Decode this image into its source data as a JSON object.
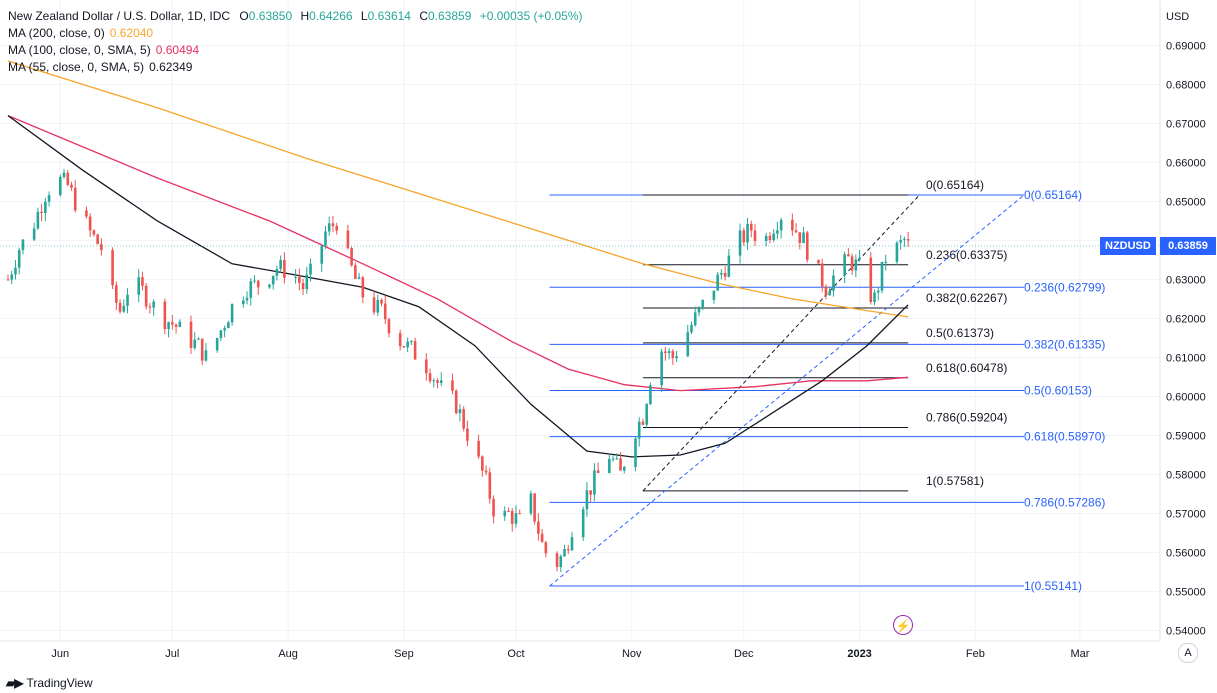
{
  "legend": {
    "title": "New Zealand Dollar / U.S. Dollar, 1D, IDC",
    "open_label": "O",
    "open": "0.63850",
    "high_label": "H",
    "high": "0.64266",
    "low_label": "L",
    "low": "0.63614",
    "close_label": "C",
    "close": "0.63859",
    "change": "+0.00035 (+0.05%)",
    "ma200_label": "MA (200, close, 0)",
    "ma200": "0.62040",
    "ma100_label": "MA (100, close, 0, SMA, 5)",
    "ma100": "0.60494",
    "ma55_label": "MA (55, close, 0, SMA, 5)",
    "ma55": "0.62349"
  },
  "price_tag": {
    "symbol": "NZDUSD",
    "price": "0.63859"
  },
  "brand": "TradingView",
  "auto_button": "A",
  "colors": {
    "up": "#26a69a",
    "down": "#ef5350",
    "ma200": "#f7a52b",
    "ma100": "#e8305f",
    "ma55": "#131722",
    "fib_blue": "#2962ff",
    "fib_black": "#131722",
    "grid": "#f0f3fa"
  },
  "chart_data": {
    "type": "candlestick",
    "title": "New Zealand Dollar / U.S. Dollar, 1D, IDC",
    "currency_label": "USD",
    "ylim": [
      0.538,
      0.6965
    ],
    "yticks": [
      "0.69000",
      "0.68000",
      "0.67000",
      "0.66000",
      "0.65000",
      "0.64000",
      "0.63000",
      "0.62000",
      "0.61000",
      "0.60000",
      "0.59000",
      "0.58000",
      "0.57000",
      "0.56000",
      "0.55000",
      "0.54000"
    ],
    "ytick_values": [
      0.69,
      0.68,
      0.67,
      0.66,
      0.65,
      0.64,
      0.63,
      0.62,
      0.61,
      0.6,
      0.59,
      0.58,
      0.57,
      0.56,
      0.55,
      0.54
    ],
    "xticks": [
      {
        "label": "Jun",
        "day": 14
      },
      {
        "label": "Jul",
        "day": 44
      },
      {
        "label": "Aug",
        "day": 75
      },
      {
        "label": "Sep",
        "day": 106
      },
      {
        "label": "Oct",
        "day": 136
      },
      {
        "label": "Nov",
        "day": 167
      },
      {
        "label": "Dec",
        "day": 197
      },
      {
        "label": "2023",
        "day": 228
      },
      {
        "label": "Feb",
        "day": 259
      },
      {
        "label": "Mar",
        "day": 287
      }
    ],
    "day_range": [
      0,
      320
    ],
    "ohlc_anchors": [
      [
        0,
        0.63
      ],
      [
        3,
        0.638
      ],
      [
        6,
        0.642
      ],
      [
        10,
        0.652
      ],
      [
        13,
        0.656
      ],
      [
        16,
        0.654
      ],
      [
        19,
        0.648
      ],
      [
        22,
        0.642
      ],
      [
        25,
        0.638
      ],
      [
        27,
        0.628
      ],
      [
        30,
        0.622
      ],
      [
        33,
        0.63
      ],
      [
        36,
        0.627
      ],
      [
        39,
        0.623
      ],
      [
        42,
        0.62
      ],
      [
        45,
        0.618
      ],
      [
        48,
        0.615
      ],
      [
        51,
        0.613
      ],
      [
        53,
        0.61
      ],
      [
        56,
        0.615
      ],
      [
        60,
        0.623
      ],
      [
        64,
        0.628
      ],
      [
        68,
        0.629
      ],
      [
        72,
        0.633
      ],
      [
        76,
        0.632
      ],
      [
        79,
        0.628
      ],
      [
        82,
        0.633
      ],
      [
        85,
        0.642
      ],
      [
        88,
        0.645
      ],
      [
        90,
        0.638
      ],
      [
        93,
        0.63
      ],
      [
        96,
        0.624
      ],
      [
        100,
        0.622
      ],
      [
        104,
        0.615
      ],
      [
        108,
        0.612
      ],
      [
        112,
        0.608
      ],
      [
        116,
        0.602
      ],
      [
        120,
        0.598
      ],
      [
        124,
        0.588
      ],
      [
        128,
        0.578
      ],
      [
        131,
        0.568
      ],
      [
        134,
        0.57
      ],
      [
        137,
        0.568
      ],
      [
        140,
        0.573
      ],
      [
        143,
        0.562
      ],
      [
        146,
        0.556
      ],
      [
        149,
        0.56
      ],
      [
        152,
        0.57
      ],
      [
        155,
        0.575
      ],
      [
        158,
        0.58
      ],
      [
        161,
        0.585
      ],
      [
        164,
        0.58
      ],
      [
        167,
        0.59
      ],
      [
        170,
        0.595
      ],
      [
        172,
        0.605
      ],
      [
        175,
        0.612
      ],
      [
        178,
        0.61
      ],
      [
        181,
        0.615
      ],
      [
        184,
        0.62
      ],
      [
        187,
        0.625
      ],
      [
        190,
        0.63
      ],
      [
        193,
        0.635
      ],
      [
        196,
        0.64
      ],
      [
        199,
        0.643
      ],
      [
        202,
        0.639
      ],
      [
        205,
        0.644
      ],
      [
        208,
        0.648
      ],
      [
        210,
        0.644
      ],
      [
        213,
        0.64
      ],
      [
        216,
        0.633
      ],
      [
        219,
        0.628
      ],
      [
        222,
        0.632
      ],
      [
        225,
        0.635
      ],
      [
        228,
        0.633
      ],
      [
        230,
        0.627
      ],
      [
        232,
        0.625
      ],
      [
        234,
        0.632
      ],
      [
        236,
        0.639
      ],
      [
        238,
        0.638
      ],
      [
        240,
        0.64
      ],
      [
        241,
        0.6386
      ]
    ],
    "series": [
      {
        "name": "MA (200, close, 0)",
        "value": 0.6204,
        "points": [
          [
            0,
            0.686
          ],
          [
            40,
            0.674
          ],
          [
            80,
            0.661
          ],
          [
            120,
            0.649
          ],
          [
            150,
            0.64
          ],
          [
            170,
            0.634
          ],
          [
            190,
            0.629
          ],
          [
            210,
            0.625
          ],
          [
            230,
            0.622
          ],
          [
            241,
            0.6204
          ]
        ]
      },
      {
        "name": "MA (100, close, 0, SMA, 5)",
        "value": 0.60494,
        "points": [
          [
            0,
            0.672
          ],
          [
            15,
            0.666
          ],
          [
            40,
            0.656
          ],
          [
            70,
            0.645
          ],
          [
            95,
            0.634
          ],
          [
            115,
            0.625
          ],
          [
            135,
            0.614
          ],
          [
            150,
            0.607
          ],
          [
            165,
            0.603
          ],
          [
            180,
            0.6015
          ],
          [
            200,
            0.6025
          ],
          [
            215,
            0.604
          ],
          [
            230,
            0.604
          ],
          [
            241,
            0.6049
          ]
        ]
      },
      {
        "name": "MA (55, close, 0, SMA, 5)",
        "value": 0.62349,
        "points": [
          [
            0,
            0.672
          ],
          [
            20,
            0.658
          ],
          [
            40,
            0.645
          ],
          [
            60,
            0.634
          ],
          [
            75,
            0.6315
          ],
          [
            95,
            0.628
          ],
          [
            110,
            0.623
          ],
          [
            125,
            0.613
          ],
          [
            140,
            0.598
          ],
          [
            155,
            0.586
          ],
          [
            167,
            0.5845
          ],
          [
            180,
            0.585
          ],
          [
            192,
            0.588
          ],
          [
            205,
            0.596
          ],
          [
            218,
            0.604
          ],
          [
            230,
            0.613
          ],
          [
            241,
            0.6235
          ]
        ]
      }
    ],
    "fib_retracement_black": {
      "start_day": 170,
      "end_day": 241,
      "levels": [
        {
          "label": "0(0.65164)",
          "value": 0.65164
        },
        {
          "label": "0.236(0.63375)",
          "value": 0.63375
        },
        {
          "label": "0.382(0.62267)",
          "value": 0.62267
        },
        {
          "label": "0.5(0.61373)",
          "value": 0.61373
        },
        {
          "label": "0.618(0.60478)",
          "value": 0.60478
        },
        {
          "label": "0.786(0.59204)",
          "value": 0.59204
        },
        {
          "label": "1(0.57581)",
          "value": 0.57581
        }
      ]
    },
    "fib_retracement_blue": {
      "start_day": 145,
      "end_day": 272,
      "levels": [
        {
          "label": "0(0.65164)",
          "value": 0.65164
        },
        {
          "label": "0.236(0.62799)",
          "value": 0.62799
        },
        {
          "label": "0.382(0.61335)",
          "value": 0.61335
        },
        {
          "label": "0.5(0.60153)",
          "value": 0.60153
        },
        {
          "label": "0.618(0.58970)",
          "value": 0.5897
        },
        {
          "label": "0.786(0.57286)",
          "value": 0.57286
        },
        {
          "label": "1(0.55141)",
          "value": 0.55141
        }
      ]
    },
    "trend_lines": [
      {
        "name": "black-dashed",
        "from": [
          170,
          0.5758
        ],
        "to": [
          244,
          0.6516
        ]
      },
      {
        "name": "blue-dashed",
        "from": [
          145,
          0.5514
        ],
        "to": [
          272,
          0.6516
        ]
      }
    ],
    "last_price": 0.63859
  }
}
